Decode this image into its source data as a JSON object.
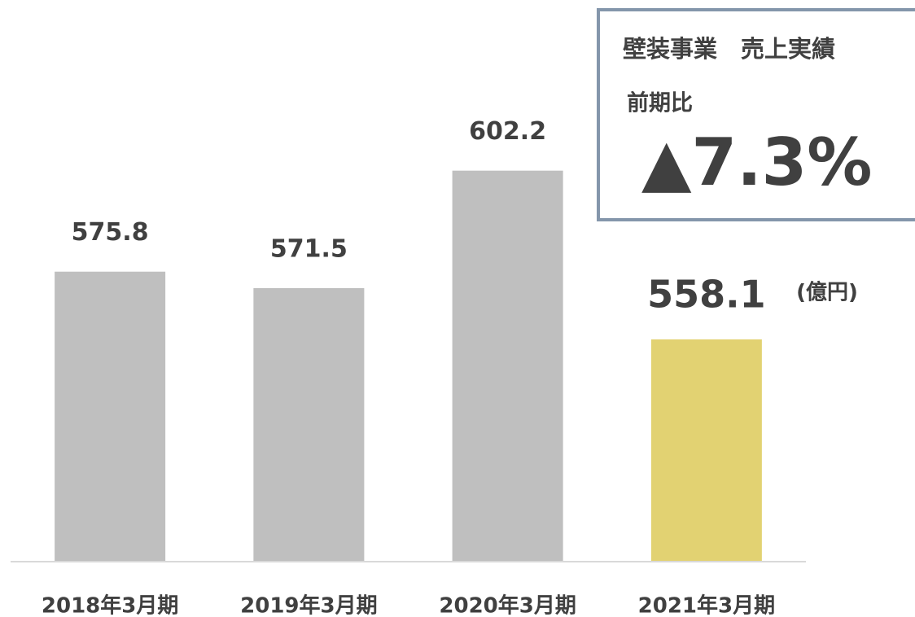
{
  "chart_data": {
    "type": "bar",
    "categories": [
      "2018年3月期",
      "2019年3月期",
      "2020年3月期",
      "2021年3月期"
    ],
    "values": [
      575.8,
      571.5,
      602.2,
      558.1
    ],
    "colors": [
      "#bfbfbf",
      "#bfbfbf",
      "#bfbfbf",
      "#e2d272"
    ],
    "unit": "(億円)",
    "ylim": [
      500,
      640
    ],
    "grid": false,
    "annotation": {
      "title": "壁装事業　売上実績",
      "label": "前期比",
      "value": "▲7.3%"
    }
  }
}
